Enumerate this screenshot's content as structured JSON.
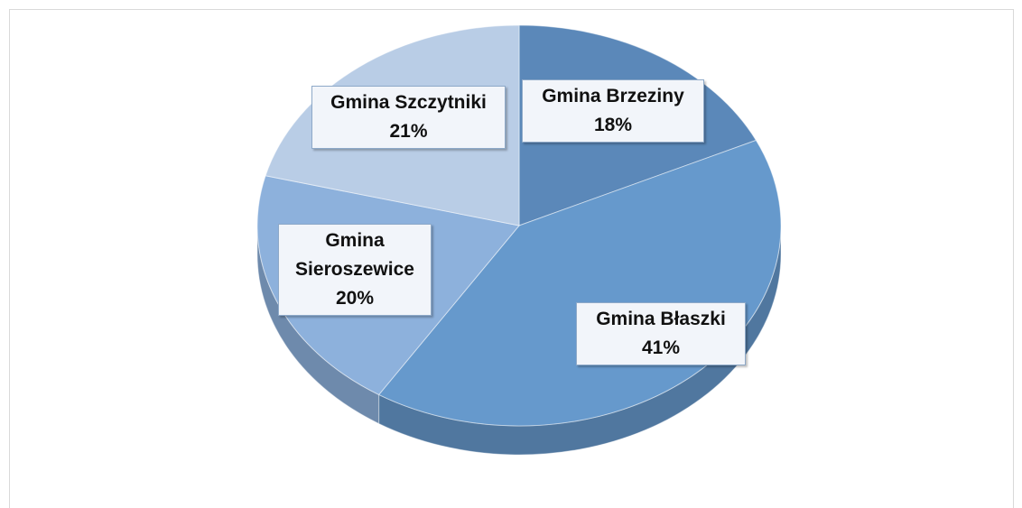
{
  "chart_data": {
    "type": "pie",
    "categories": [
      "Gmina Brzeziny",
      "Gmina Błaszki",
      "Gmina Sieroszewice",
      "Gmina Szczytniki"
    ],
    "values": [
      18,
      41,
      20,
      21
    ],
    "value_labels": [
      "18%",
      "41%",
      "20%",
      "21%"
    ],
    "colors": [
      "#5b88b9",
      "#6699cc",
      "#8db1dc",
      "#b9cde6"
    ],
    "start_angle": 0,
    "direction": "clockwise"
  }
}
